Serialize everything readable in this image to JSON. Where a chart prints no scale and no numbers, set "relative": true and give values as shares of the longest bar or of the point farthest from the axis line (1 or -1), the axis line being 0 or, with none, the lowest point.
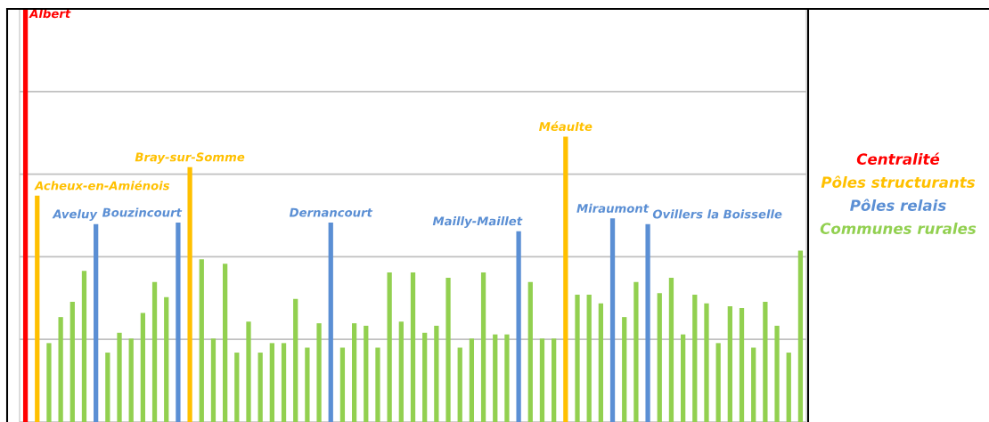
{
  "chart_data": {
    "type": "bar",
    "relative": true,
    "stacked": true,
    "grid": "y",
    "legend": "right",
    "categories": [
      null,
      null,
      null,
      null,
      null,
      null,
      null,
      null,
      null,
      null,
      null,
      null,
      null,
      null,
      null,
      null,
      null,
      null,
      null,
      null,
      null,
      null,
      null,
      null,
      null,
      null,
      null,
      null,
      null,
      null,
      null,
      null,
      null,
      null,
      null,
      null,
      null,
      null,
      null,
      null,
      null,
      null,
      null,
      null,
      null,
      null,
      null,
      null,
      null,
      null,
      null,
      null,
      null,
      null,
      null,
      null,
      null,
      null,
      null,
      null,
      null,
      null,
      null,
      null,
      null,
      null,
      null
    ],
    "series": [
      {
        "name": "Centralité",
        "color": "#ff0000",
        "values": [
          1,
          null,
          null,
          null,
          null,
          null,
          null,
          null,
          null,
          null,
          null,
          null,
          null,
          null,
          null,
          null,
          null,
          null,
          null,
          null,
          null,
          null,
          null,
          null,
          null,
          null,
          null,
          null,
          null,
          null,
          null,
          null,
          null,
          null,
          null,
          null,
          null,
          null,
          null,
          null,
          null,
          null,
          null,
          null,
          null,
          null,
          null,
          null,
          null,
          null,
          null,
          null,
          null,
          null,
          null,
          null,
          null,
          null,
          null,
          null,
          null,
          null,
          null,
          null,
          null,
          null,
          null
        ]
      },
      {
        "name": "Pôles structurants",
        "color": "#ffc000",
        "values": [
          null,
          0.548,
          null,
          null,
          null,
          null,
          null,
          null,
          null,
          null,
          null,
          null,
          null,
          null,
          0.617,
          null,
          null,
          null,
          null,
          null,
          null,
          null,
          null,
          null,
          null,
          null,
          null,
          null,
          null,
          null,
          null,
          null,
          null,
          null,
          null,
          null,
          null,
          null,
          null,
          null,
          null,
          null,
          null,
          null,
          null,
          null,
          0.691,
          null,
          null,
          null,
          null,
          null,
          null,
          null,
          null,
          null,
          null,
          null,
          null,
          null,
          null,
          null,
          null,
          null,
          null,
          null,
          null
        ]
      },
      {
        "name": "Pôles relais",
        "color": "#5b8fd4",
        "values": [
          null,
          null,
          null,
          null,
          null,
          null,
          0.479,
          null,
          null,
          null,
          null,
          null,
          null,
          0.483,
          null,
          null,
          null,
          null,
          null,
          null,
          null,
          null,
          null,
          null,
          null,
          null,
          0.483,
          null,
          null,
          null,
          null,
          null,
          null,
          null,
          null,
          null,
          null,
          null,
          null,
          null,
          null,
          null,
          0.462,
          null,
          null,
          null,
          null,
          null,
          null,
          null,
          0.493,
          null,
          null,
          0.479,
          null,
          null,
          null,
          null,
          null,
          null,
          null,
          null,
          null,
          null,
          null,
          null,
          null
        ]
      },
      {
        "name": "Communes rurales",
        "color": "#92d050",
        "values": [
          null,
          null,
          0.191,
          0.254,
          0.291,
          0.366,
          null,
          0.168,
          0.216,
          0.202,
          0.264,
          0.339,
          0.302,
          null,
          null,
          0.394,
          0.202,
          0.383,
          0.168,
          0.243,
          0.168,
          0.191,
          0.191,
          0.298,
          0.18,
          0.239,
          null,
          0.18,
          0.239,
          0.233,
          0.18,
          0.362,
          0.243,
          0.362,
          0.216,
          0.233,
          0.349,
          0.18,
          0.202,
          0.362,
          0.212,
          0.212,
          null,
          0.339,
          0.202,
          0.202,
          null,
          0.308,
          0.308,
          0.287,
          null,
          0.254,
          0.339,
          null,
          0.312,
          0.349,
          0.212,
          0.308,
          0.287,
          0.191,
          0.28,
          0.276,
          0.18,
          0.291,
          0.233,
          0.168,
          0.415
        ]
      }
    ],
    "annotations": [
      "Albert",
      "Acheux-en-Amiénois",
      "Aveluy",
      "Bouzincourt",
      "Bray-sur-Somme",
      "Dernancourt",
      "Mailly-Maillet",
      "Méaulte",
      "Miraumont",
      "Ovillers la Boisselle"
    ]
  }
}
